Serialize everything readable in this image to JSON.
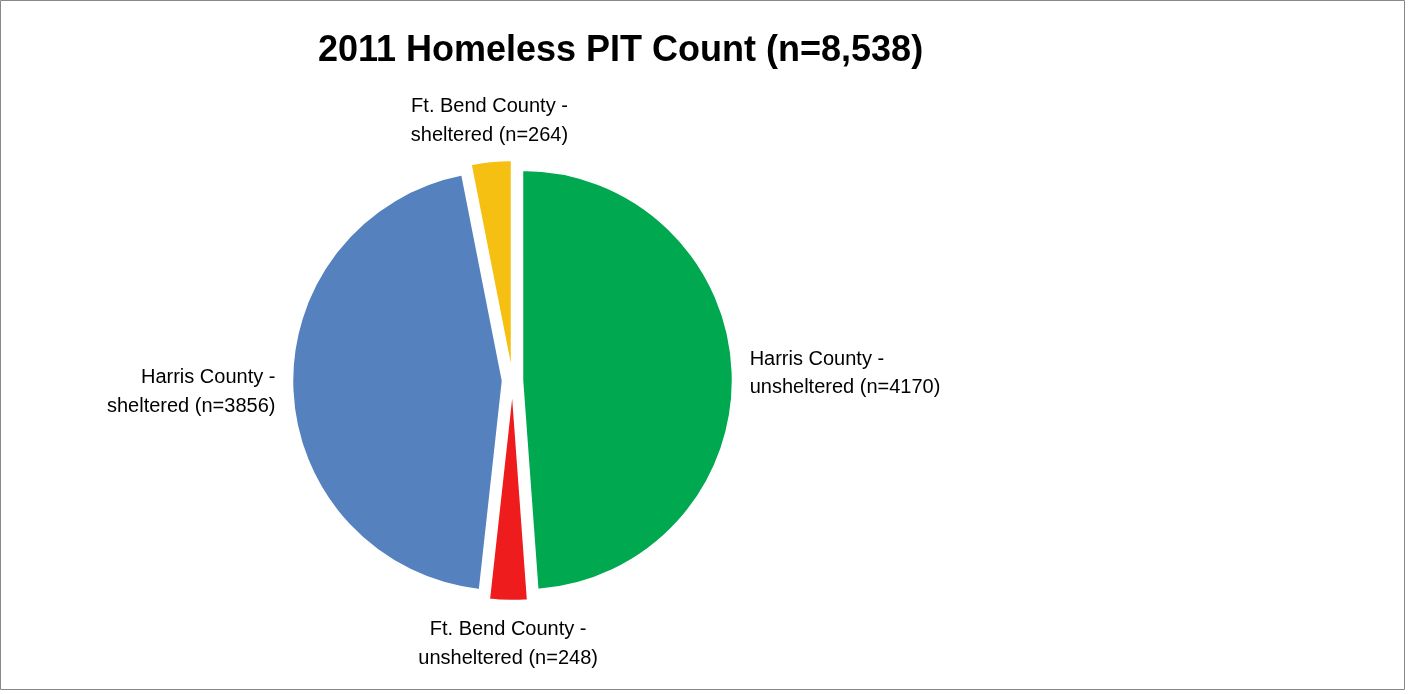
{
  "chart_data": {
    "type": "pie",
    "title": "2011 Homeless PIT Count (n=8,538)",
    "categories": [
      "Harris County -\nunsheltered (n=4170)",
      "Ft. Bend County -\nunsheltered (n=248)",
      "Harris County -\nsheltered (n=3856)",
      "Ft. Bend County -\nsheltered (n=264)"
    ],
    "values": [
      4170,
      248,
      3856,
      264
    ],
    "colors": [
      "#00a84f",
      "#ee1c1c",
      "#5582be",
      "#f5c012"
    ]
  }
}
